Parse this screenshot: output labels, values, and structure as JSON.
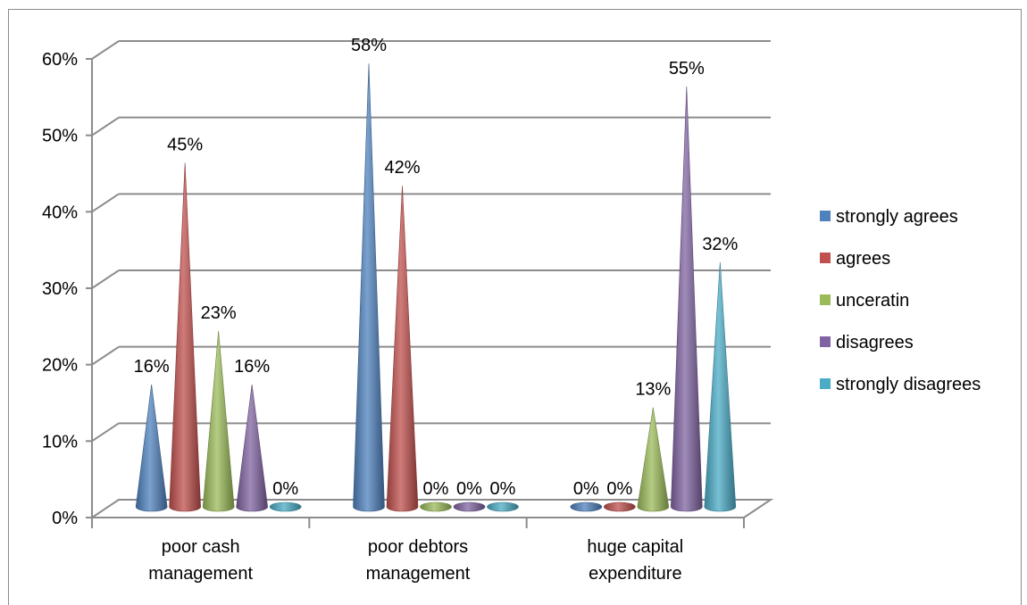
{
  "chart_data": {
    "type": "bar",
    "style": "3d-cone",
    "categories": [
      "poor cash\nmanagement",
      "poor debtors\nmanagement",
      "huge capital\nexpenditure"
    ],
    "series": [
      {
        "name": "strongly agrees",
        "color": "#4f81bd",
        "values": [
          16,
          58,
          0
        ]
      },
      {
        "name": "agrees",
        "color": "#c0504d",
        "values": [
          45,
          42,
          0
        ]
      },
      {
        "name": "unceratin",
        "color": "#9bbb59",
        "values": [
          23,
          0,
          13
        ]
      },
      {
        "name": "disagrees",
        "color": "#8064a2",
        "values": [
          16,
          0,
          55
        ]
      },
      {
        "name": "strongly disagrees",
        "color": "#4bacc6",
        "values": [
          0,
          0,
          32
        ]
      }
    ],
    "data_labels": [
      [
        "16%",
        "58%",
        "0%"
      ],
      [
        "45%",
        "42%",
        "0%"
      ],
      [
        "23%",
        "0%",
        "13%"
      ],
      [
        "16%",
        "0%",
        "55%"
      ],
      [
        "0%",
        "0%",
        "32%"
      ]
    ],
    "y_ticks": [
      "0%",
      "10%",
      "20%",
      "30%",
      "40%",
      "50%",
      "60%"
    ],
    "ylim": [
      0,
      60
    ],
    "y_unit": "%",
    "grid": true,
    "legend_position": "right",
    "title": "",
    "xlabel": "",
    "ylabel": ""
  }
}
